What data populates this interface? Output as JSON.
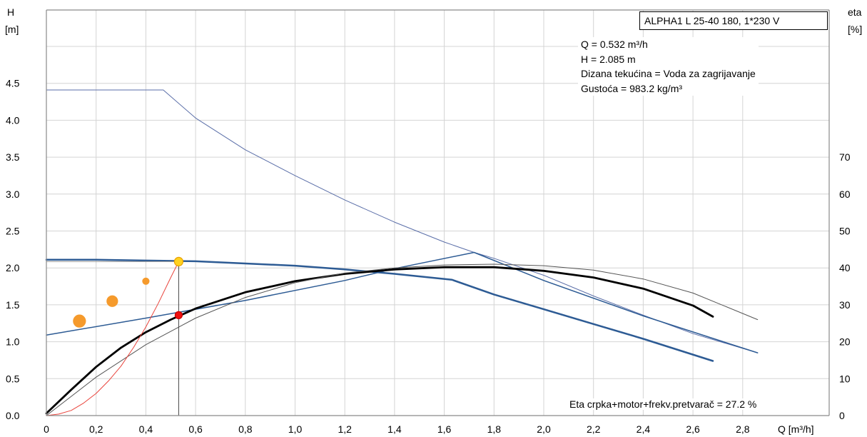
{
  "chart_data": {
    "type": "line",
    "title": "",
    "yaxis_left": {
      "label_line1": "H",
      "label_line2": "[m]",
      "ticks": [
        "0.0",
        "0.5",
        "1.0",
        "1.5",
        "2.0",
        "2.5",
        "3.0",
        "3.5",
        "4.0",
        "4.5"
      ],
      "range": [
        0,
        5.2
      ]
    },
    "yaxis_right": {
      "label_line1": "eta",
      "label_line2": "[%]",
      "ticks": [
        "0",
        "10",
        "20",
        "30",
        "40",
        "50",
        "60",
        "70"
      ],
      "range": [
        0,
        88
      ]
    },
    "xaxis": {
      "label": "Q [m³/h]",
      "ticks": [
        "0",
        "0,2",
        "0,4",
        "0,6",
        "0,8",
        "1,0",
        "1,2",
        "1,4",
        "1,6",
        "1,8",
        "2,0",
        "2,2",
        "2,4",
        "2,6",
        "2,8"
      ],
      "range": [
        0,
        3.1
      ]
    },
    "grid": true,
    "series": [
      {
        "axis": "H",
        "color": "#5a6ea8",
        "width": 1,
        "x": [
          0,
          0.47,
          0.6,
          0.8,
          1.0,
          1.2,
          1.4,
          1.6,
          1.72,
          1.8,
          2.0,
          2.2,
          2.4,
          2.6,
          2.86
        ],
        "y": [
          4.41,
          4.41,
          4.03,
          3.6,
          3.25,
          2.92,
          2.62,
          2.35,
          2.21,
          2.13,
          1.9,
          1.62,
          1.36,
          1.11,
          0.85
        ]
      },
      {
        "axis": "H",
        "color": "#2d5b94",
        "width": 2.5,
        "x": [
          0,
          0.2,
          0.4,
          0.6,
          0.8,
          1.0,
          1.2,
          1.4,
          1.63,
          1.8,
          2.0,
          2.2,
          2.4,
          2.68
        ],
        "y": [
          2.11,
          2.11,
          2.1,
          2.09,
          2.06,
          2.03,
          1.98,
          1.92,
          1.84,
          1.64,
          1.44,
          1.24,
          1.04,
          0.74
        ]
      },
      {
        "axis": "H",
        "color": "#2d5b94",
        "width": 1.5,
        "x": [
          0,
          0.4,
          0.8,
          1.2,
          1.4,
          1.72,
          2.0,
          2.4,
          2.86
        ],
        "y": [
          1.09,
          1.32,
          1.56,
          1.83,
          1.99,
          2.21,
          1.83,
          1.35,
          0.85
        ]
      },
      {
        "axis": "H",
        "color": "#000000",
        "width": 2.8,
        "x": [
          0,
          0.1,
          0.2,
          0.3,
          0.4,
          0.5,
          0.6,
          0.8,
          1.0,
          1.2,
          1.4,
          1.6,
          1.8,
          2.0,
          2.2,
          2.4,
          2.6,
          2.68
        ],
        "y": [
          0.03,
          0.35,
          0.66,
          0.92,
          1.13,
          1.3,
          1.45,
          1.67,
          1.82,
          1.92,
          1.98,
          2.01,
          2.01,
          1.96,
          1.87,
          1.72,
          1.49,
          1.34
        ]
      },
      {
        "axis": "H",
        "color": "#555555",
        "width": 1,
        "x": [
          0,
          0.2,
          0.4,
          0.6,
          0.8,
          1.0,
          1.2,
          1.4,
          1.6,
          1.8,
          2.0,
          2.2,
          2.4,
          2.6,
          2.86
        ],
        "y": [
          0.0,
          0.52,
          0.96,
          1.32,
          1.6,
          1.8,
          1.93,
          2.0,
          2.04,
          2.05,
          2.03,
          1.97,
          1.85,
          1.66,
          1.3
        ]
      },
      {
        "axis": "H",
        "color": "#e9443c",
        "width": 1,
        "x": [
          0,
          0.05,
          0.1,
          0.15,
          0.2,
          0.25,
          0.3,
          0.35,
          0.4,
          0.45,
          0.5,
          0.532
        ],
        "y": [
          0.0,
          0.02,
          0.07,
          0.17,
          0.3,
          0.47,
          0.67,
          0.92,
          1.2,
          1.52,
          1.87,
          2.085
        ]
      },
      {
        "axis": "H",
        "color": "#999999",
        "width": 1,
        "x": [
          0,
          0.532
        ],
        "y": [
          2.085,
          2.085
        ]
      },
      {
        "axis": "H",
        "color": "#444444",
        "width": 1,
        "x": [
          0.532,
          0.532
        ],
        "y": [
          0,
          2.085
        ]
      }
    ],
    "markers": [
      {
        "x": 0.532,
        "y": 2.085,
        "r": 6,
        "fill": "#ffd21f",
        "stroke": "#e8a000"
      },
      {
        "x": 0.532,
        "y": 1.36,
        "r": 5,
        "fill": "#ee1111",
        "stroke": "#cc0000"
      },
      {
        "x": 0.4,
        "y": 1.82,
        "r": 4.5,
        "fill": "#f59a2c",
        "stroke": "#f59a2c"
      },
      {
        "x": 0.265,
        "y": 1.55,
        "r": 7.5,
        "fill": "#f59a2c",
        "stroke": "#f59a2c"
      },
      {
        "x": 0.133,
        "y": 1.28,
        "r": 8.5,
        "fill": "#f59a2c",
        "stroke": "#f59a2c"
      }
    ]
  },
  "annotations": {
    "pump_model": "ALPHA1 L 25-40 180, 1*230 V",
    "info_lines": [
      "Q = 0.532 m³/h",
      "H = 2.085 m",
      "Dizana tekućina = Voda za zagrijavanje",
      "Gustoća = 983.2 kg/m³"
    ],
    "efficiency_note": "Eta crpka+motor+frekv.pretvarač = 27.2 %"
  }
}
